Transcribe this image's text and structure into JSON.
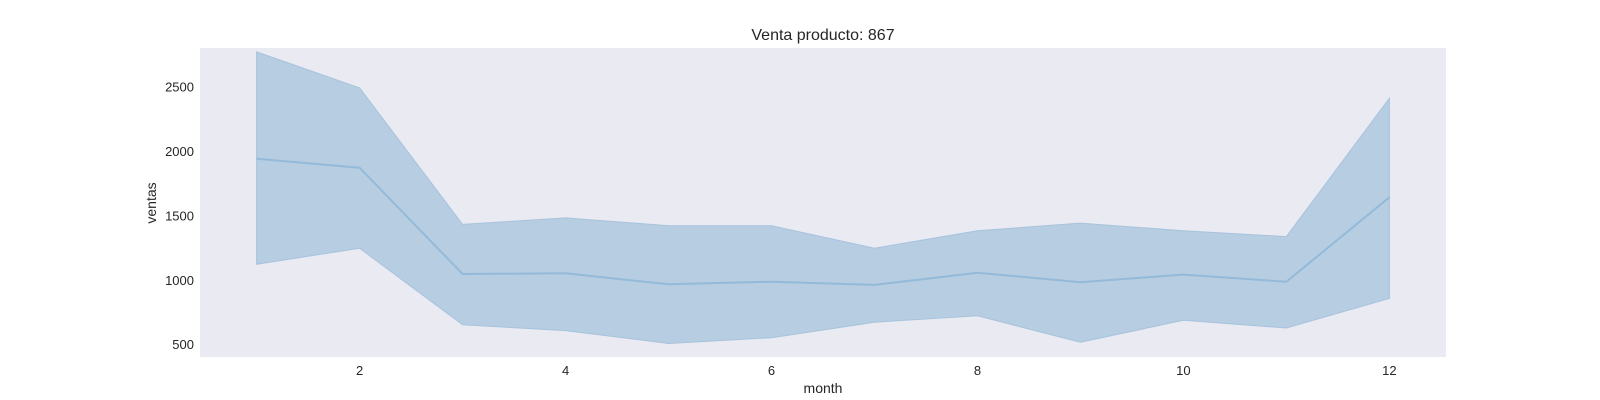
{
  "chart_data": {
    "type": "area",
    "title": "Venta producto: 867",
    "xlabel": "month",
    "ylabel": "ventas",
    "xlim": [
      0.45,
      12.55
    ],
    "ylim": [
      400,
      2800
    ],
    "xticks": [
      2,
      4,
      6,
      8,
      10,
      12
    ],
    "yticks": [
      500,
      1000,
      1500,
      2000,
      2500
    ],
    "grid": false,
    "colors": {
      "background": "#eaeaf2",
      "line": "#94bad9",
      "band_fill": "#b7cde1",
      "band_edge": "#a7c3dc"
    },
    "x": [
      1,
      2,
      3,
      4,
      5,
      6,
      7,
      8,
      9,
      10,
      11,
      12
    ],
    "series": [
      {
        "values": [
          1940,
          1870,
          1045,
          1050,
          965,
          985,
          960,
          1055,
          980,
          1040,
          985,
          1640
        ],
        "lower": [
          1120,
          1245,
          650,
          605,
          505,
          550,
          670,
          720,
          515,
          685,
          625,
          855
        ],
        "upper": [
          2770,
          2490,
          1430,
          1480,
          1420,
          1420,
          1245,
          1380,
          1440,
          1380,
          1335,
          2410
        ]
      }
    ]
  }
}
